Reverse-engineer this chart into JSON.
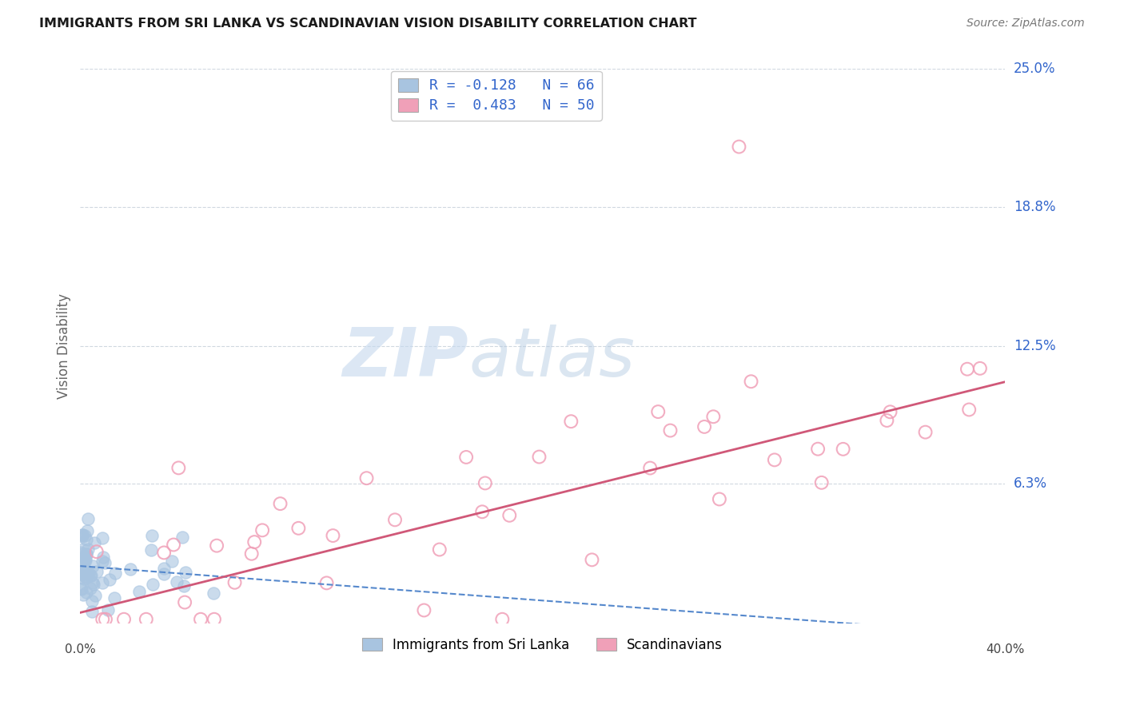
{
  "title": "IMMIGRANTS FROM SRI LANKA VS SCANDINAVIAN VISION DISABILITY CORRELATION CHART",
  "source": "Source: ZipAtlas.com",
  "ylabel": "Vision Disability",
  "xlim": [
    0.0,
    0.4
  ],
  "ylim": [
    0.0,
    0.25
  ],
  "yticks_right": [
    0.063,
    0.125,
    0.188,
    0.25
  ],
  "ytick_labels_right": [
    "6.3%",
    "12.5%",
    "18.8%",
    "25.0%"
  ],
  "grid_color": "#d0d8e0",
  "background_color": "#ffffff",
  "series1": {
    "name": "Immigrants from Sri Lanka",
    "R": -0.128,
    "N": 66,
    "marker_color": "#a8c4e0",
    "trend_color": "#5588cc",
    "trend_style": "--"
  },
  "series2": {
    "name": "Scandinavians",
    "R": 0.483,
    "N": 50,
    "marker_color": "#f0a0b8",
    "trend_color": "#d05878",
    "trend_style": "-"
  },
  "watermark_zip": "ZIP",
  "watermark_atlas": "atlas",
  "stat_color": "#3366cc",
  "legend_label1": "R = -0.128   N = 66",
  "legend_label2": "R =  0.483   N = 50"
}
